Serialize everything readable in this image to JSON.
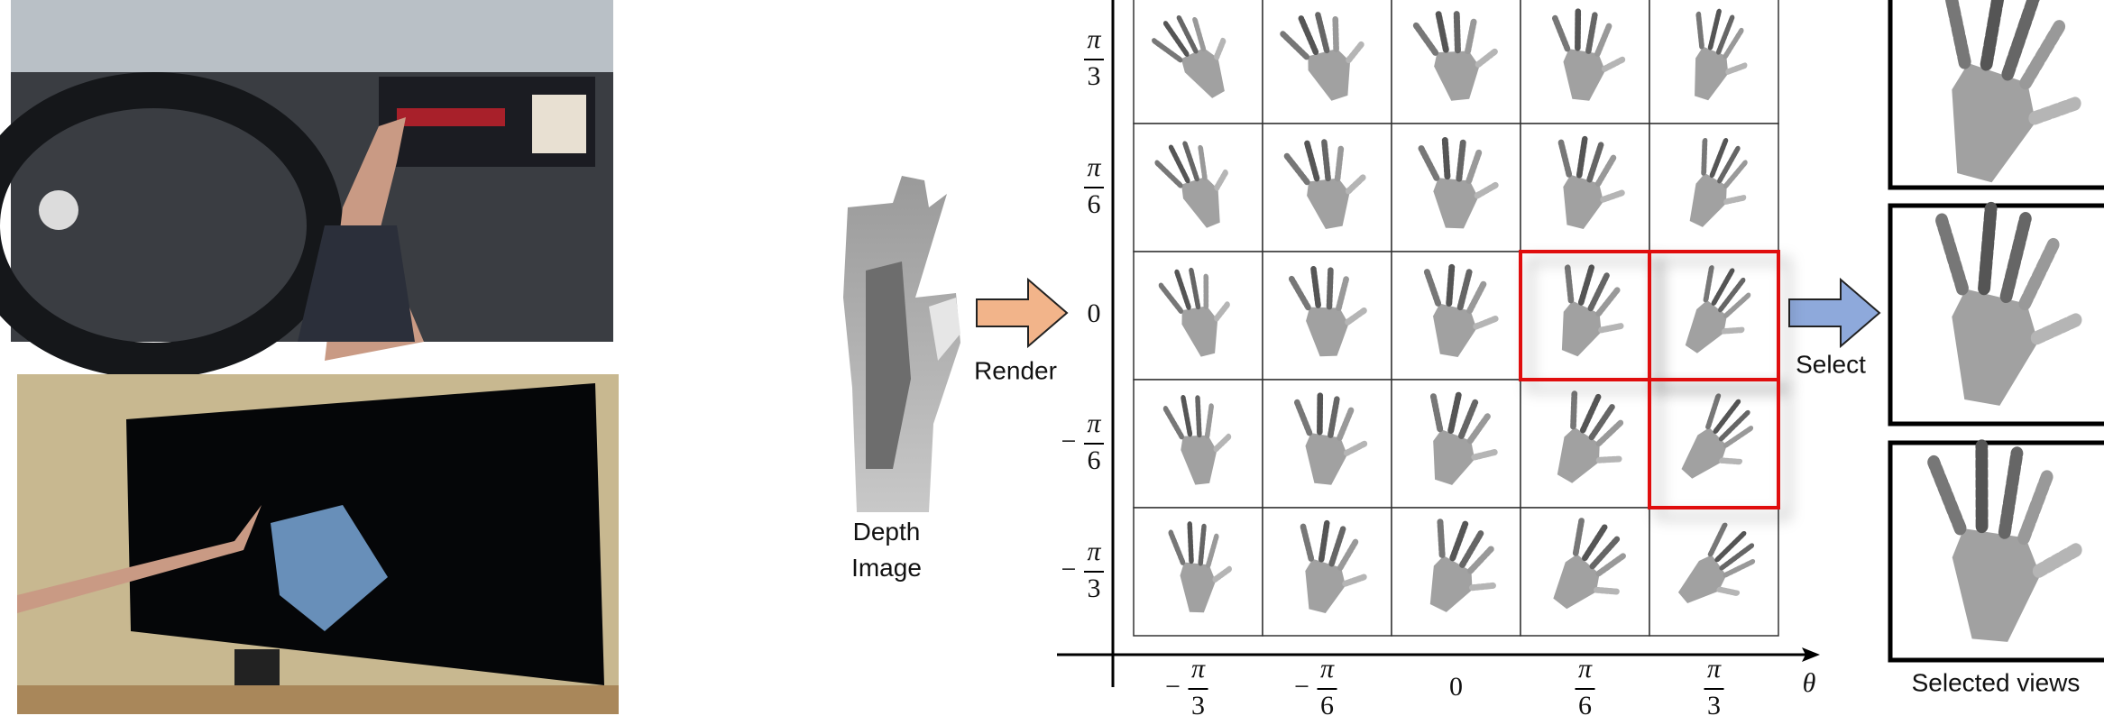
{
  "labels": {
    "depth_image": "Depth Image",
    "render": "Render",
    "select": "Select",
    "selected_views": "Selected views"
  },
  "y_axis": {
    "ticks": [
      {
        "num": "π",
        "den": "3"
      },
      {
        "num": "π",
        "den": "6"
      },
      {
        "text": "0"
      },
      {
        "sign": "−",
        "num": "π",
        "den": "6"
      },
      {
        "sign": "−",
        "num": "π",
        "den": "3"
      }
    ]
  },
  "x_axis": {
    "label": "θ",
    "ticks": [
      {
        "sign": "−",
        "num": "π",
        "den": "3"
      },
      {
        "sign": "−",
        "num": "π",
        "den": "6"
      },
      {
        "text": "0"
      },
      {
        "num": "π",
        "den": "6"
      },
      {
        "num": "π",
        "den": "3"
      }
    ]
  }
}
